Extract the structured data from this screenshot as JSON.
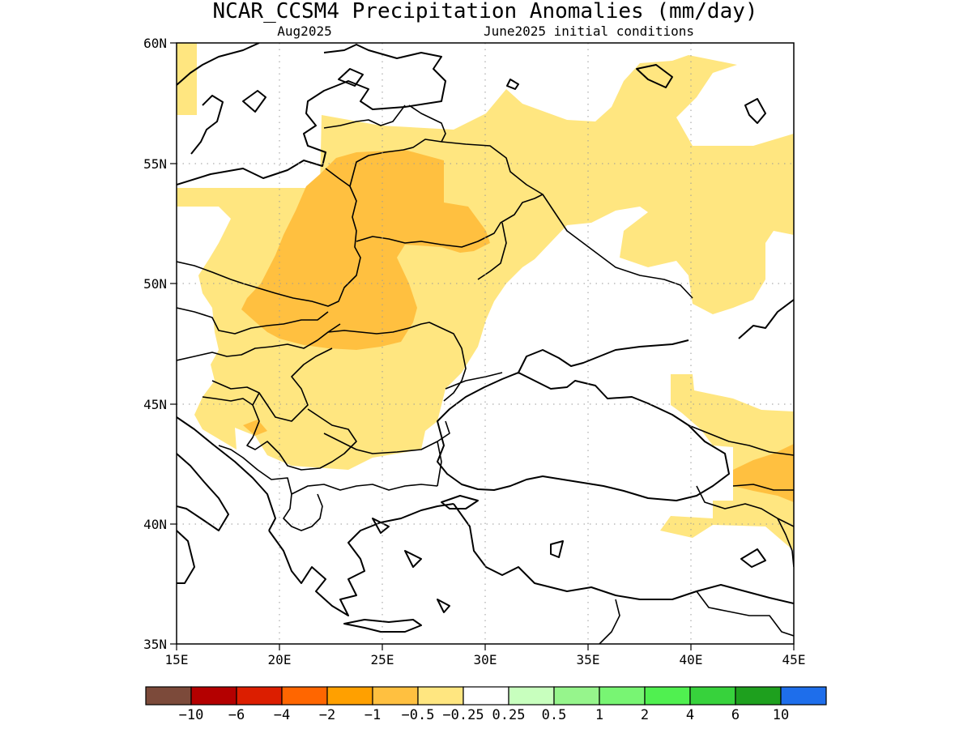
{
  "title": "NCAR_CCSM4 Precipitation Anomalies (mm/day)",
  "subtitle_left": "Aug2025",
  "subtitle_right": "June2025 initial conditions",
  "map": {
    "lon_range": [
      15,
      45
    ],
    "lat_range": [
      35,
      60
    ],
    "x_tick_labels": [
      "15E",
      "20E",
      "25E",
      "30E",
      "35E",
      "40E",
      "45E"
    ],
    "y_tick_labels": [
      "35N",
      "40N",
      "45N",
      "50N",
      "55N",
      "60N"
    ],
    "grid": true,
    "anomaly_regions": [
      {
        "name": "scandinavia-weak-dry",
        "category": "-0.5 to -0.25",
        "color": "#ffe680"
      },
      {
        "name": "central-east-europe-weak-dry",
        "category": "-0.5 to -0.25",
        "color": "#ffe680"
      },
      {
        "name": "russia-north-weak-dry",
        "category": "-0.5 to -0.25",
        "color": "#ffe680"
      },
      {
        "name": "caucasus-weak-dry",
        "category": "-0.5 to -0.25",
        "color": "#ffe680"
      },
      {
        "name": "turkey-east-weak-dry",
        "category": "-0.5 to -0.25",
        "color": "#ffe680"
      },
      {
        "name": "poland-belarus-moderate-dry",
        "category": "-1 to -0.5",
        "color": "#ffc040"
      },
      {
        "name": "carpathians-moderate-dry",
        "category": "-1 to -0.5",
        "color": "#ffc040"
      },
      {
        "name": "georgia-moderate-dry",
        "category": "-1 to -0.5",
        "color": "#ffc040"
      },
      {
        "name": "balkans-moderate-dry",
        "category": "-1 to -0.5",
        "color": "#ffc040"
      }
    ]
  },
  "colorbar": {
    "colors": [
      "#7c4a3a",
      "#b40000",
      "#dc1e00",
      "#ff6600",
      "#ffa000",
      "#ffc040",
      "#ffe680",
      "#ffffff",
      "#c8ffbe",
      "#96f58c",
      "#78f573",
      "#50f050",
      "#37d23c",
      "#1ea01e",
      "#1e6eeb"
    ],
    "labels": [
      "−10",
      "−6",
      "−4",
      "−2",
      "−1",
      "−0.5",
      "−0.25",
      "0.25",
      "0.5",
      "1",
      "2",
      "4",
      "6",
      "10"
    ]
  }
}
